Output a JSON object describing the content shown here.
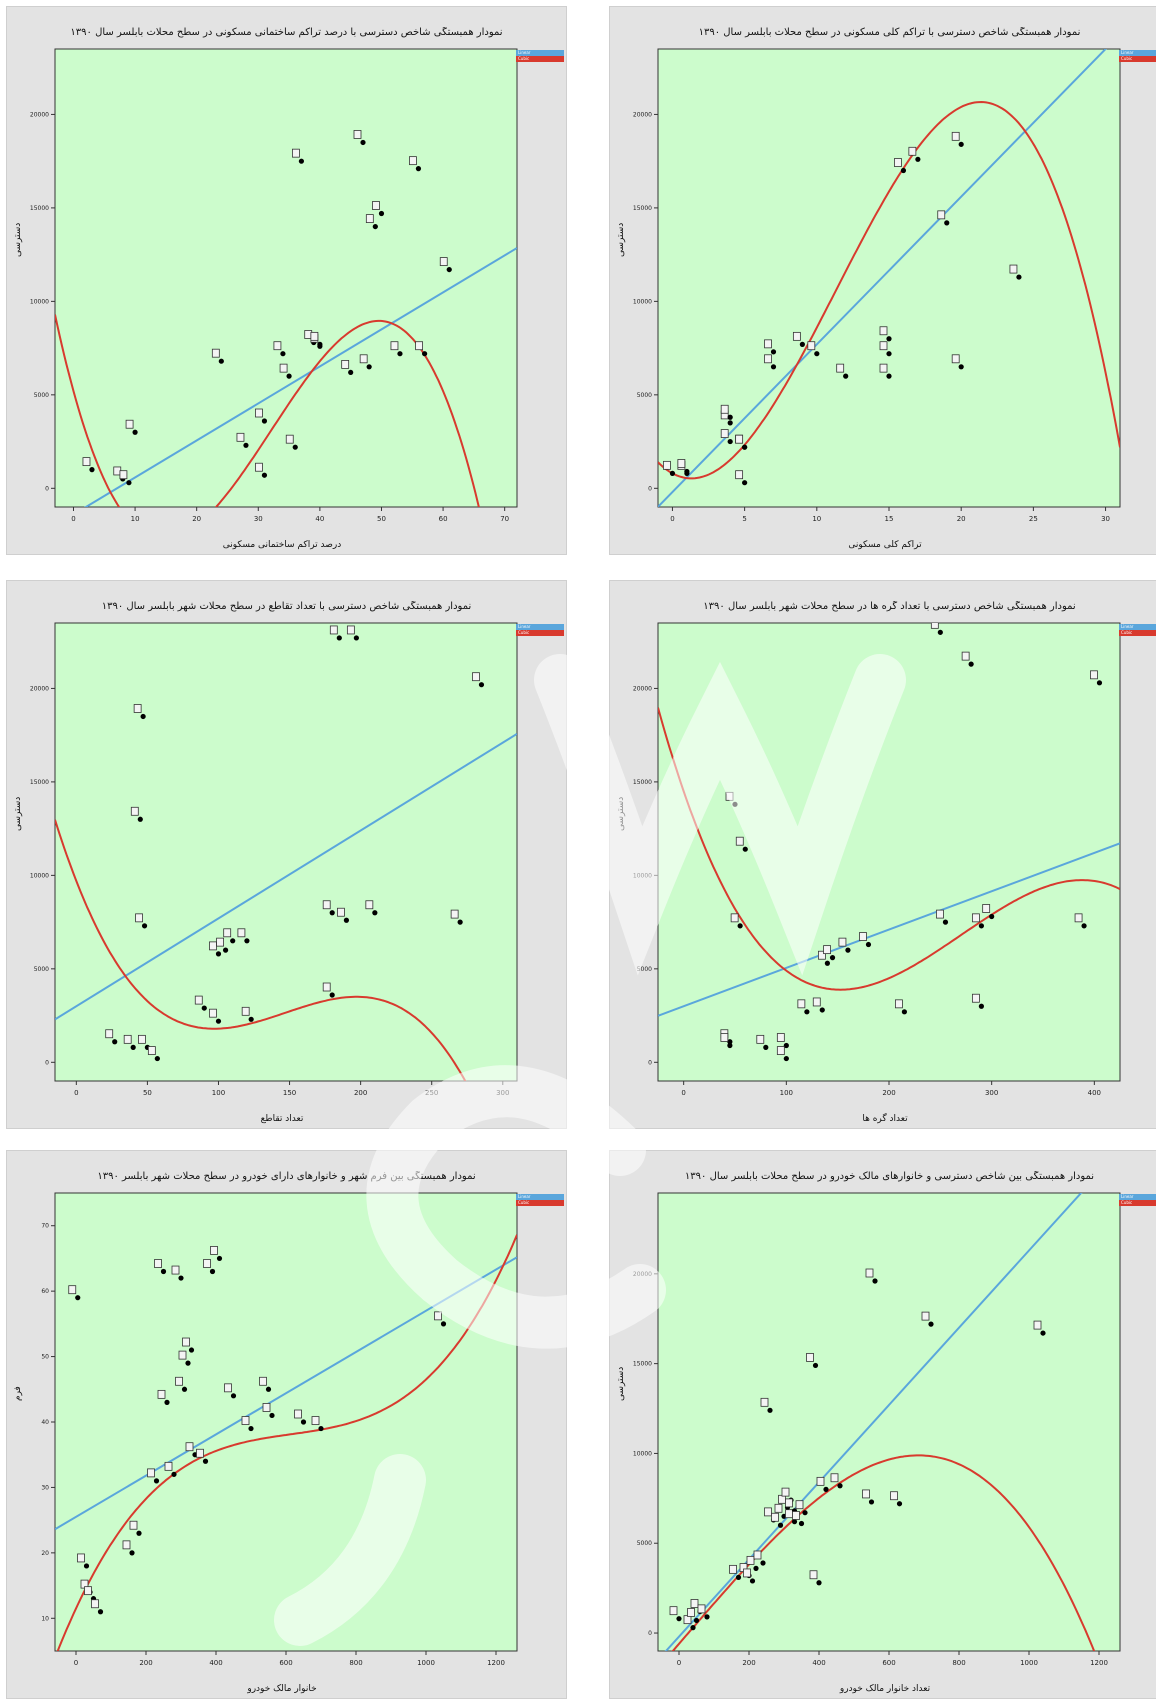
{
  "colors": {
    "plot_bg": "#ccfccc",
    "linear": "#5aa6dc",
    "cubic": "#d83a2e",
    "panel_bg": "#e3e3e3"
  },
  "legend": {
    "linear_label": "Linear",
    "cubic_label": "Cubic"
  },
  "chart_data": [
    {
      "type": "scatter",
      "title": "نمودار همبستگی شاخص دسترسی با درصد تراکم ساختمانی مسکونی در سطح محلات بابلسر سال ۱۳۹۰",
      "xlabel": "درصد تراکم ساختمانی مسکونی",
      "ylabel": "دسترسی",
      "xlim": [
        -3,
        72
      ],
      "ylim": [
        -1000,
        23500
      ],
      "xticks": [
        0,
        10,
        20,
        30,
        40,
        50,
        60,
        70
      ],
      "yticks": [
        0,
        5000,
        10000,
        15000,
        20000
      ],
      "points": [
        [
          3,
          1000
        ],
        [
          8,
          500
        ],
        [
          9,
          300
        ],
        [
          10,
          3000
        ],
        [
          24,
          6800
        ],
        [
          28,
          2300
        ],
        [
          31,
          3600
        ],
        [
          31,
          700
        ],
        [
          34,
          7200
        ],
        [
          35,
          6000
        ],
        [
          36,
          2200
        ],
        [
          37,
          17500
        ],
        [
          39,
          7800
        ],
        [
          40,
          7600
        ],
        [
          40,
          7700
        ],
        [
          45,
          6200
        ],
        [
          47,
          18500
        ],
        [
          48,
          6500
        ],
        [
          49,
          14000
        ],
        [
          50,
          14700
        ],
        [
          53,
          7200
        ],
        [
          56,
          17100
        ],
        [
          57,
          7200
        ],
        [
          61,
          11700
        ]
      ],
      "linear": [
        -1400,
        198
      ],
      "cubic": [
        5200,
        -1200,
        53,
        -0.55
      ]
    },
    {
      "type": "scatter",
      "title": "نمودار همبستگی شاخص دسترسی با تراکم کلی مسکونی در سطح محلات بابلسر سال ۱۳۹۰",
      "xlabel": "تراکم کلی مسکونی",
      "ylabel": "دسترسی",
      "xlim": [
        -1,
        31
      ],
      "ylim": [
        -1000,
        23500
      ],
      "xticks": [
        0,
        5,
        10,
        15,
        20,
        25,
        30
      ],
      "yticks": [
        0,
        5000,
        10000,
        15000,
        20000
      ],
      "points": [
        [
          0,
          800
        ],
        [
          1,
          800
        ],
        [
          1,
          900
        ],
        [
          4,
          2500
        ],
        [
          4,
          3500
        ],
        [
          4,
          3800
        ],
        [
          5,
          300
        ],
        [
          5,
          2200
        ],
        [
          5,
          2200
        ],
        [
          7,
          7300
        ],
        [
          7,
          6500
        ],
        [
          9,
          7700
        ],
        [
          10,
          7200
        ],
        [
          12,
          6000
        ],
        [
          15,
          8000
        ],
        [
          15,
          7200
        ],
        [
          15,
          6000
        ],
        [
          16,
          17000
        ],
        [
          17,
          17600
        ],
        [
          19,
          14200
        ],
        [
          20,
          18400
        ],
        [
          20,
          6500
        ],
        [
          24,
          11300
        ]
      ],
      "linear": [
        -200,
        790
      ],
      "cubic": [
        800,
        -420,
        170,
        -5
      ]
    },
    {
      "type": "scatter",
      "title": "نمودار همبستگی شاخص دسترسی با تعداد تقاطع در سطح محلات شهر بابلسر سال ۱۳۹۰",
      "xlabel": "تعداد تقاطع",
      "ylabel": "دسترسی",
      "xlim": [
        -15,
        310
      ],
      "ylim": [
        -1000,
        23500
      ],
      "xticks": [
        0,
        50,
        100,
        150,
        200,
        250,
        300
      ],
      "yticks": [
        0,
        5000,
        10000,
        15000,
        20000
      ],
      "points": [
        [
          27,
          1100
        ],
        [
          40,
          800
        ],
        [
          45,
          13000
        ],
        [
          47,
          18500
        ],
        [
          48,
          7300
        ],
        [
          50,
          800
        ],
        [
          57,
          200
        ],
        [
          90,
          2900
        ],
        [
          100,
          2200
        ],
        [
          100,
          5800
        ],
        [
          105,
          6000
        ],
        [
          110,
          6500
        ],
        [
          120,
          6500
        ],
        [
          123,
          2300
        ],
        [
          180,
          3600
        ],
        [
          180,
          8000
        ],
        [
          185,
          22700
        ],
        [
          190,
          7600
        ],
        [
          197,
          22700
        ],
        [
          210,
          8000
        ],
        [
          270,
          7500
        ],
        [
          285,
          20200
        ]
      ],
      "linear": [
        3000,
        47
      ],
      "cubic": [
        9700,
        -195,
        1.5,
        -0.0034
      ]
    },
    {
      "type": "scatter",
      "title": "نمودار همبستگی شاخص دسترسی با تعداد گره ها در سطح محلات شهر بابلسر سال ۱۳۹۰",
      "xlabel": "تعداد گره ها",
      "ylabel": "دسترسی",
      "xlim": [
        -25,
        425
      ],
      "ylim": [
        -1000,
        23500
      ],
      "xticks": [
        0,
        100,
        200,
        300,
        400
      ],
      "yticks": [
        0,
        5000,
        10000,
        15000,
        20000
      ],
      "points": [
        [
          45,
          1100
        ],
        [
          45,
          900
        ],
        [
          50,
          13800
        ],
        [
          55,
          7300
        ],
        [
          60,
          11400
        ],
        [
          80,
          800
        ],
        [
          100,
          900
        ],
        [
          100,
          200
        ],
        [
          120,
          2700
        ],
        [
          135,
          2800
        ],
        [
          140,
          5300
        ],
        [
          145,
          5600
        ],
        [
          160,
          6000
        ],
        [
          180,
          6300
        ],
        [
          215,
          2700
        ],
        [
          250,
          23000
        ],
        [
          255,
          7500
        ],
        [
          280,
          21300
        ],
        [
          290,
          7300
        ],
        [
          290,
          3000
        ],
        [
          300,
          7800
        ],
        [
          390,
          7300
        ],
        [
          405,
          20300
        ]
      ],
      "linear": [
        3000,
        20.5
      ],
      "cubic": [
        14500,
        -160,
        0.73,
        -0.0009
      ]
    },
    {
      "type": "scatter",
      "title": "نمودار همبستگی بین فرم شهر و خانوارهای دارای خودرو در سطح محلات شهر بابلسر ۱۳۹۰",
      "xlabel": "خانوار مالک خودرو",
      "ylabel": "فرم",
      "xlim": [
        -60,
        1260
      ],
      "ylim": [
        5,
        75
      ],
      "xticks": [
        0,
        200,
        400,
        600,
        800,
        1000,
        1200
      ],
      "yticks": [
        10,
        20,
        30,
        40,
        50,
        60,
        70
      ],
      "points": [
        [
          5,
          59
        ],
        [
          30,
          18
        ],
        [
          40,
          14
        ],
        [
          50,
          13
        ],
        [
          70,
          11
        ],
        [
          160,
          20
        ],
        [
          180,
          23
        ],
        [
          230,
          31
        ],
        [
          250,
          63
        ],
        [
          260,
          43
        ],
        [
          280,
          32
        ],
        [
          300,
          62
        ],
        [
          310,
          45
        ],
        [
          320,
          49
        ],
        [
          330,
          51
        ],
        [
          340,
          35
        ],
        [
          370,
          34
        ],
        [
          390,
          63
        ],
        [
          410,
          65
        ],
        [
          450,
          44
        ],
        [
          500,
          39
        ],
        [
          550,
          45
        ],
        [
          560,
          41
        ],
        [
          650,
          40
        ],
        [
          700,
          39
        ],
        [
          1050,
          55
        ]
      ],
      "linear": [
        25.5,
        0.0315
      ],
      "cubic": [
        11.5,
        0.115,
        -0.000175,
        9.5e-08
      ]
    },
    {
      "type": "scatter",
      "title": "نمودار همبستگی بین شاخص دسترسی و خانوارهای مالک خودرو در سطح محلات بابلسر سال ۱۳۹۰",
      "xlabel": "تعداد خانوار مالک خودرو",
      "ylabel": "دسترسی",
      "xlim": [
        -60,
        1260
      ],
      "ylim": [
        -1000,
        24500
      ],
      "xticks": [
        0,
        200,
        400,
        600,
        800,
        1000,
        1200
      ],
      "yticks": [
        0,
        5000,
        10000,
        15000,
        20000
      ],
      "points": [
        [
          0,
          800
        ],
        [
          40,
          300
        ],
        [
          50,
          700
        ],
        [
          60,
          1200
        ],
        [
          80,
          900
        ],
        [
          170,
          3100
        ],
        [
          200,
          3200
        ],
        [
          210,
          2900
        ],
        [
          220,
          3600
        ],
        [
          240,
          3900
        ],
        [
          260,
          12400
        ],
        [
          270,
          6300
        ],
        [
          290,
          6000
        ],
        [
          300,
          6500
        ],
        [
          310,
          7000
        ],
        [
          320,
          7400
        ],
        [
          330,
          6200
        ],
        [
          330,
          6800
        ],
        [
          350,
          6100
        ],
        [
          360,
          6700
        ],
        [
          390,
          14900
        ],
        [
          400,
          2800
        ],
        [
          420,
          8000
        ],
        [
          460,
          8200
        ],
        [
          550,
          7300
        ],
        [
          560,
          19600
        ],
        [
          630,
          7200
        ],
        [
          720,
          17200
        ],
        [
          1040,
          16700
        ]
      ],
      "linear": [
        -200,
        21.5
      ],
      "cubic": [
        -600,
        22.5,
        0.0015,
        -1.75e-05
      ]
    }
  ],
  "watermark": "site"
}
